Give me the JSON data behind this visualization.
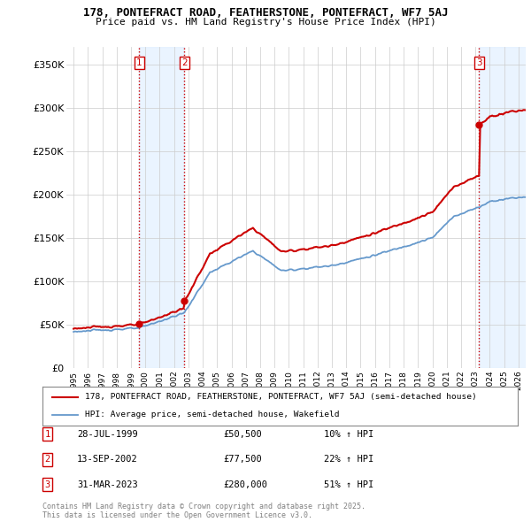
{
  "title1": "178, PONTEFRACT ROAD, FEATHERSTONE, PONTEFRACT, WF7 5AJ",
  "title2": "Price paid vs. HM Land Registry's House Price Index (HPI)",
  "legend_label1": "178, PONTEFRACT ROAD, FEATHERSTONE, PONTEFRACT, WF7 5AJ (semi-detached house)",
  "legend_label2": "HPI: Average price, semi-detached house, Wakefield",
  "sale_color": "#cc0000",
  "hpi_color": "#6699cc",
  "annotation_box_color": "#cc0000",
  "purchases": [
    {
      "label": "1",
      "date_x": 1999.57,
      "price": 50500,
      "pct": "10%",
      "date_str": "28-JUL-1999"
    },
    {
      "label": "2",
      "date_x": 2002.71,
      "price": 77500,
      "pct": "22%",
      "date_str": "13-SEP-2002"
    },
    {
      "label": "3",
      "date_x": 2023.25,
      "price": 280000,
      "pct": "51%",
      "date_str": "31-MAR-2023"
    }
  ],
  "ylim": [
    0,
    370000
  ],
  "xlim": [
    1994.5,
    2026.5
  ],
  "yticks": [
    0,
    50000,
    100000,
    150000,
    200000,
    250000,
    300000,
    350000
  ],
  "ytick_labels": [
    "£0",
    "£50K",
    "£100K",
    "£150K",
    "£200K",
    "£250K",
    "£300K",
    "£350K"
  ],
  "footer": "Contains HM Land Registry data © Crown copyright and database right 2025.\nThis data is licensed under the Open Government Licence v3.0.",
  "background_color": "#ffffff",
  "grid_color": "#cccccc",
  "shade_color": "#ddeeff",
  "hatch_color": "#cccccc"
}
